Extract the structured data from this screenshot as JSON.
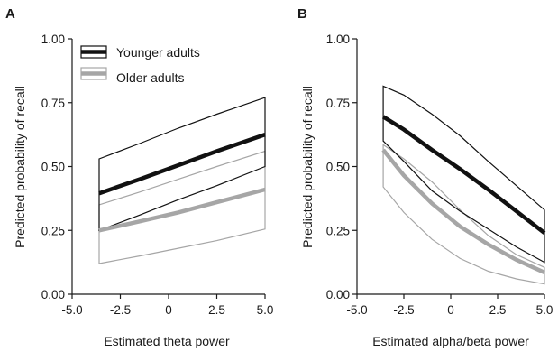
{
  "chart_data": [
    {
      "type": "line",
      "panel_label": "A",
      "xlabel": "Estimated theta power",
      "ylabel": "Predicted probability of recall",
      "xlim": [
        -5.0,
        5.0
      ],
      "ylim": [
        0.0,
        1.0
      ],
      "x_ticks": [
        "-5.0",
        "-2.5",
        "0",
        "2.5",
        "5.0"
      ],
      "y_ticks": [
        "0.00",
        "0.25",
        "0.50",
        "0.75",
        "1.00"
      ],
      "legend": {
        "placement": "top-left",
        "entries": [
          {
            "label": "Younger adults",
            "color": "#111111"
          },
          {
            "label": "Older adults",
            "color": "#a6a6a6"
          }
        ]
      },
      "series": [
        {
          "name": "Younger adults",
          "color": "#111111",
          "x": [
            -3.6,
            -1.5,
            0.5,
            2.5,
            5.0
          ],
          "mean": [
            0.395,
            0.45,
            0.505,
            0.56,
            0.625
          ],
          "upper": [
            0.53,
            0.59,
            0.65,
            0.705,
            0.77
          ],
          "lower": [
            0.25,
            0.31,
            0.37,
            0.425,
            0.5
          ]
        },
        {
          "name": "Older adults",
          "color": "#a6a6a6",
          "x": [
            -3.6,
            -1.5,
            0.5,
            2.5,
            5.0
          ],
          "mean": [
            0.25,
            0.285,
            0.32,
            0.36,
            0.41
          ],
          "upper": [
            0.35,
            0.4,
            0.45,
            0.5,
            0.56
          ],
          "lower": [
            0.12,
            0.15,
            0.18,
            0.21,
            0.255
          ]
        }
      ]
    },
    {
      "type": "line",
      "panel_label": "B",
      "xlabel": "Estimated alpha/beta power",
      "ylabel": "Predicted probability of recall",
      "xlim": [
        -5.0,
        5.0
      ],
      "ylim": [
        0.0,
        1.0
      ],
      "x_ticks": [
        "-5.0",
        "-2.5",
        "0",
        "2.5",
        "5.0"
      ],
      "y_ticks": [
        "0.00",
        "0.25",
        "0.50",
        "0.75",
        "1.00"
      ],
      "series": [
        {
          "name": "Younger adults",
          "color": "#111111",
          "x": [
            -3.6,
            -2.5,
            -1.0,
            0.5,
            2.0,
            3.5,
            5.0
          ],
          "mean": [
            0.695,
            0.645,
            0.565,
            0.49,
            0.41,
            0.325,
            0.24
          ],
          "upper": [
            0.815,
            0.78,
            0.705,
            0.62,
            0.52,
            0.425,
            0.33
          ],
          "lower": [
            0.6,
            0.52,
            0.405,
            0.325,
            0.255,
            0.185,
            0.125
          ]
        },
        {
          "name": "Older adults",
          "color": "#a6a6a6",
          "x": [
            -3.6,
            -2.5,
            -1.0,
            0.5,
            2.0,
            3.5,
            5.0
          ],
          "mean": [
            0.565,
            0.465,
            0.355,
            0.265,
            0.195,
            0.135,
            0.085
          ],
          "upper": [
            0.585,
            0.53,
            0.44,
            0.33,
            0.23,
            0.155,
            0.105
          ],
          "lower": [
            0.42,
            0.32,
            0.215,
            0.14,
            0.09,
            0.06,
            0.04
          ]
        }
      ]
    }
  ]
}
